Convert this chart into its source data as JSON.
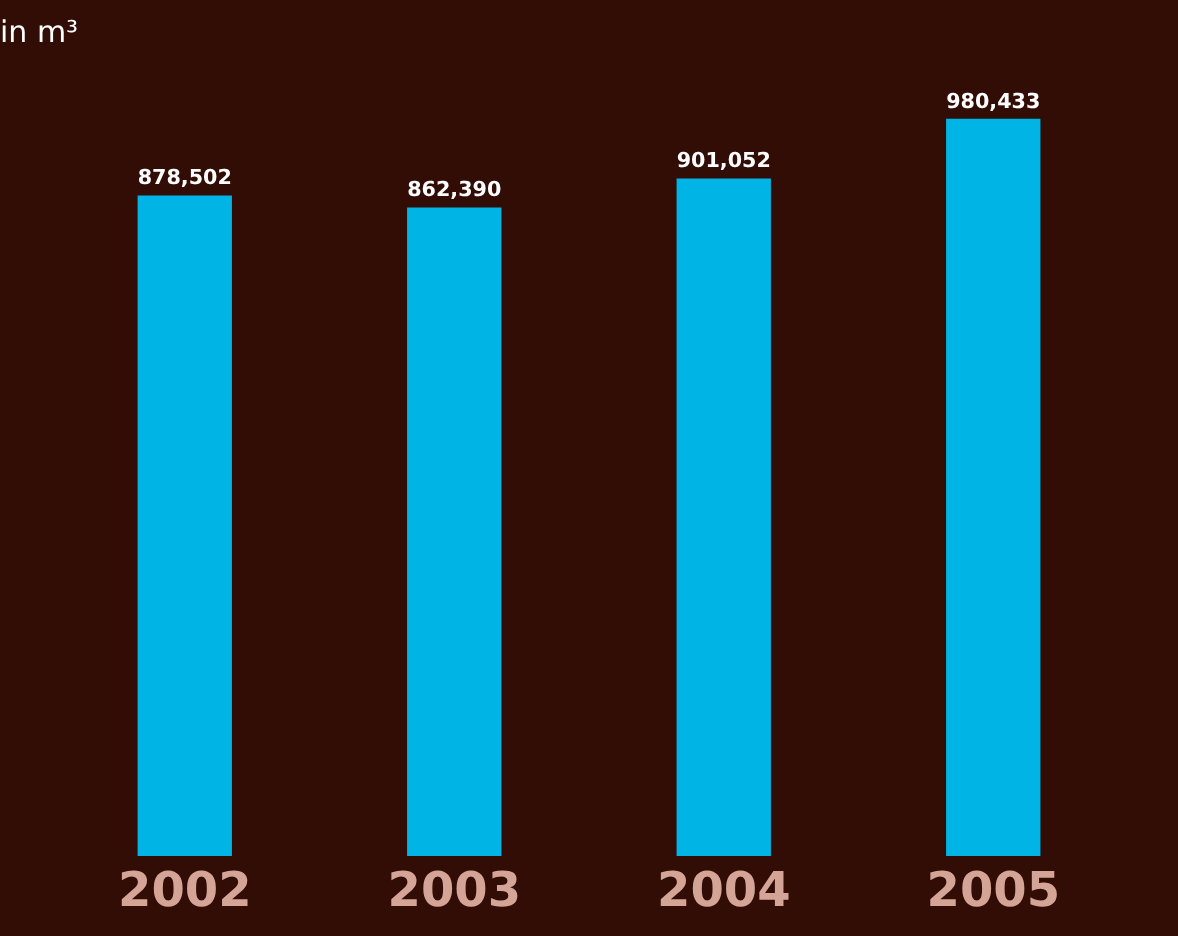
{
  "chart_data": {
    "type": "bar",
    "subtitle": "in m³",
    "categories": [
      "2002",
      "2003",
      "2004",
      "2005"
    ],
    "values": [
      878502,
      862390,
      901052,
      980433
    ],
    "color": "#00b4e6",
    "data_labels": true,
    "value_labels": [
      "878,502",
      "862,390",
      "901,052",
      "980,433"
    ],
    "tick_labels": "x",
    "grid": false
  }
}
